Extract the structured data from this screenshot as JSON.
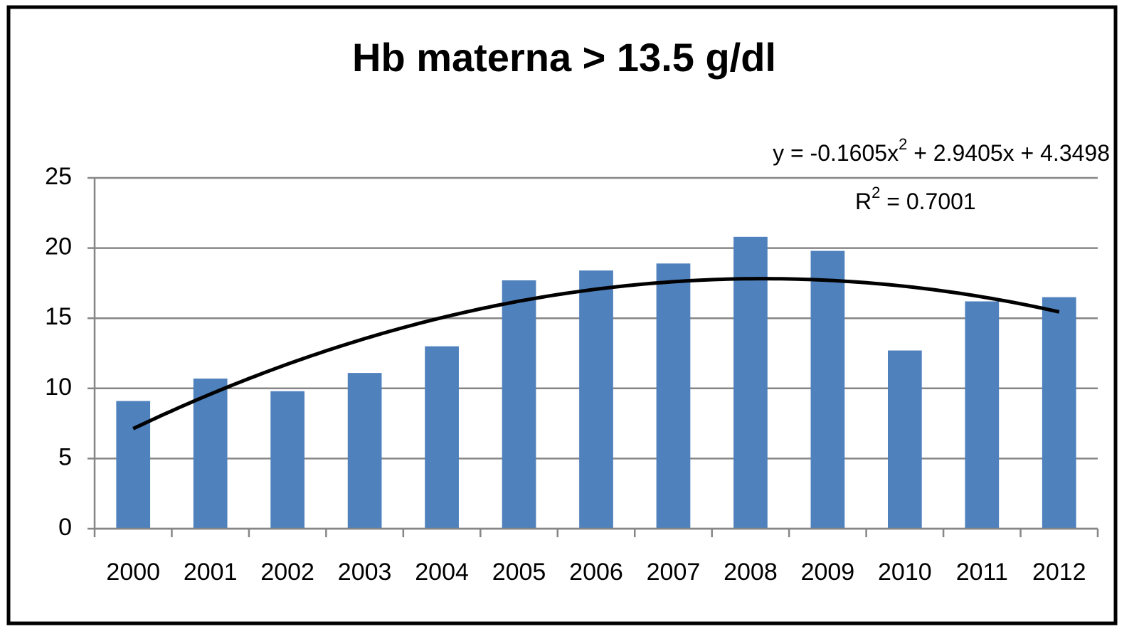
{
  "chart_data": {
    "type": "bar",
    "title": "Hb materna > 13.5 g/dl",
    "categories": [
      "2000",
      "2001",
      "2002",
      "2003",
      "2004",
      "2005",
      "2006",
      "2007",
      "2008",
      "2009",
      "2010",
      "2011",
      "2012"
    ],
    "values": [
      9.1,
      10.7,
      9.8,
      11.1,
      13.0,
      17.7,
      18.4,
      18.9,
      20.8,
      19.8,
      12.7,
      16.2,
      16.5
    ],
    "color": "#4f81bd",
    "ylim": [
      0,
      25
    ],
    "yticks": [
      0,
      5,
      10,
      15,
      20,
      25
    ],
    "grid": true,
    "trendline": {
      "coefficients": [
        -0.1605,
        2.9405,
        4.3498
      ],
      "color": "#000000"
    },
    "annotations": [
      [
        "y = -0.1605x",
        "2",
        " + 2.9405x + 4.3498"
      ],
      [
        "R",
        "2",
        " = 0.7001"
      ]
    ]
  }
}
